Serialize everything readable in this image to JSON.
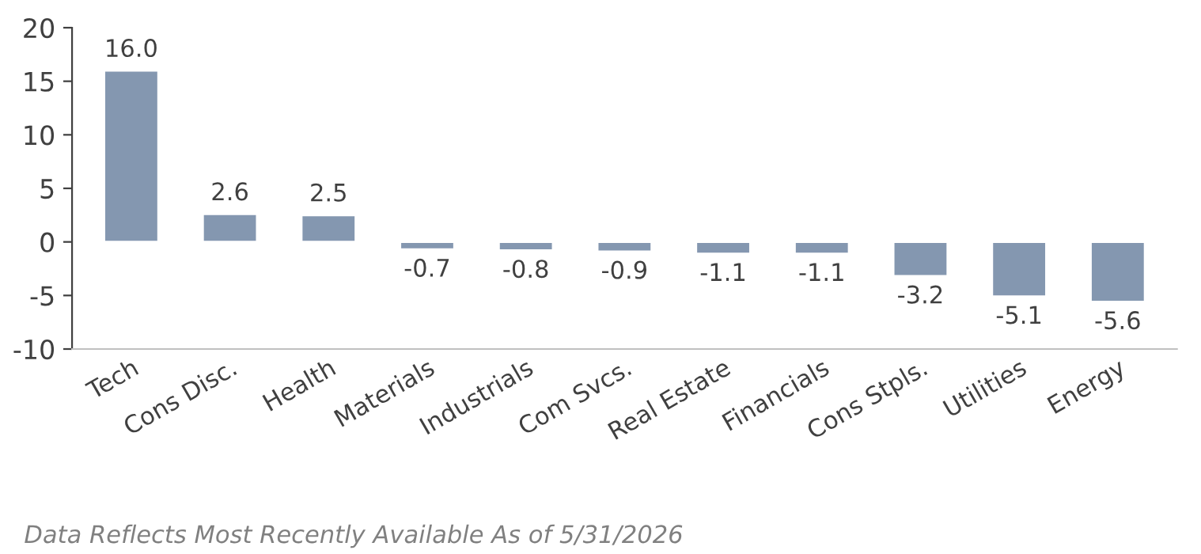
{
  "chart_data": {
    "type": "bar",
    "categories": [
      "Tech",
      "Cons Disc.",
      "Health",
      "Materials",
      "Industrials",
      "Com Svcs.",
      "Real Estate",
      "Financials",
      "Cons Stpls.",
      "Utilities",
      "Energy"
    ],
    "values": [
      16.0,
      2.6,
      2.5,
      -0.7,
      -0.8,
      -0.9,
      -1.1,
      -1.1,
      -3.2,
      -5.1,
      -5.6
    ],
    "value_labels": [
      "16.0",
      "2.6",
      "2.5",
      "-0.7",
      "-0.8",
      "-0.9",
      "-1.1",
      "-1.1",
      "-3.2",
      "-5.1",
      "-5.6"
    ],
    "color": "#8497b0",
    "ylim": [
      -10,
      20
    ],
    "yticks": [
      -10,
      -5,
      0,
      5,
      10,
      15,
      20
    ],
    "grid": false,
    "legend": false,
    "annotations": [
      "Data Reflects Most Recently Available As of 5/31/2026"
    ]
  }
}
